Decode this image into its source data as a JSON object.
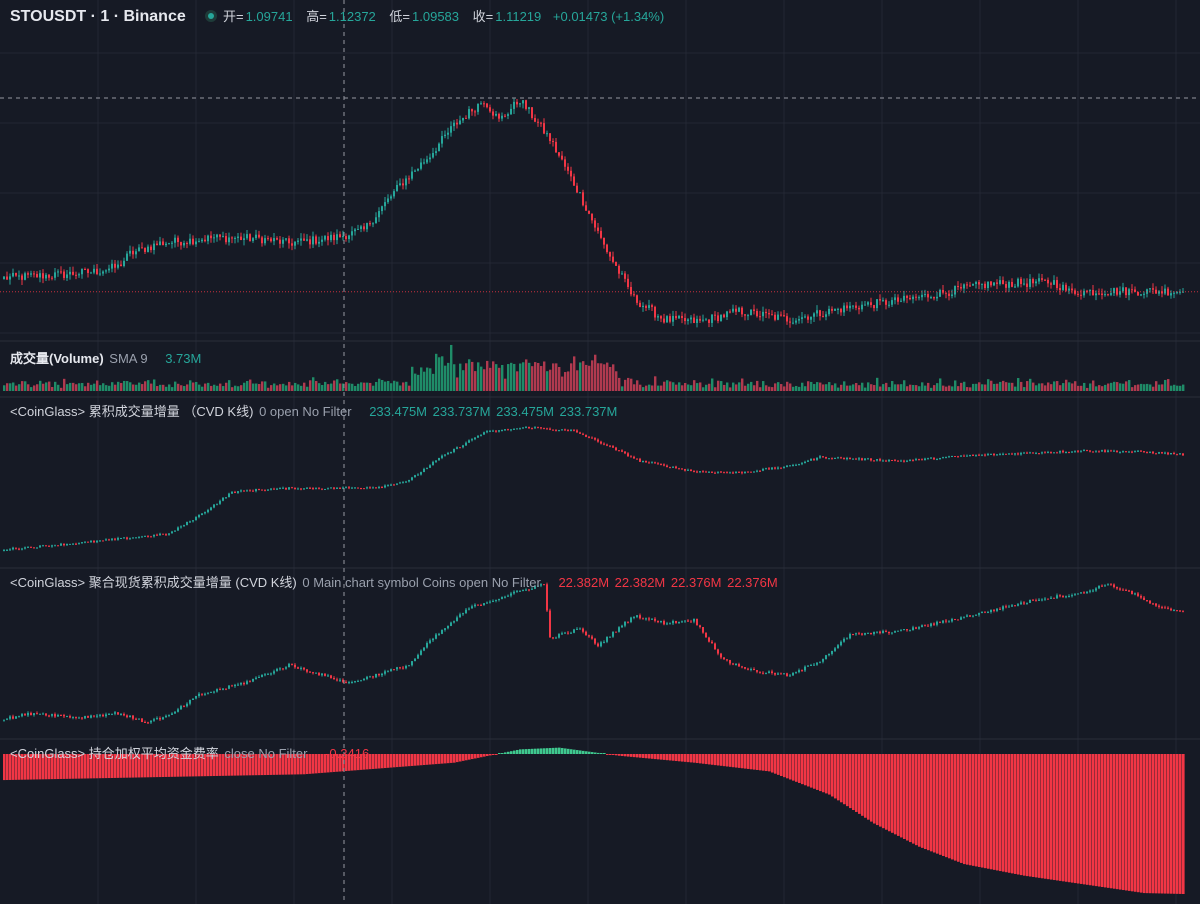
{
  "header": {
    "symbol_title": "STOUSDT · 1 · Binance",
    "open_label": "开=",
    "open_value": "1.09741",
    "high_label": "高=",
    "high_value": "1.12372",
    "low_label": "低=",
    "low_value": "1.09583",
    "close_label": "收=",
    "close_value": "1.11219",
    "change": "+0.01473 (+1.34%)"
  },
  "volume_legend": {
    "title": "成交量(Volume)",
    "sma": "SMA 9",
    "value": "3.73M"
  },
  "cvd_legend": {
    "title": "<CoinGlass> 累积成交量增量 （CVD K线)",
    "params": "0 open No Filter",
    "values": [
      "233.475M",
      "233.737M",
      "233.475M",
      "233.737M"
    ]
  },
  "spot_cvd_legend": {
    "title": "<CoinGlass> 聚合现货累积成交量增量 (CVD K线)",
    "params": "0 Main chart symbol Coins open No Filter",
    "values": [
      "22.382M",
      "22.382M",
      "22.376M",
      "22.376M"
    ]
  },
  "funding_legend": {
    "title": "<CoinGlass> 持仓加权平均资金费率",
    "params": "close No Filter",
    "value": "-0.2416"
  },
  "colors": {
    "background": "#161a25",
    "grid": "#232734",
    "up": "#26a69a",
    "down": "#f23645",
    "up_volume": "#1f8c68",
    "down_volume": "#b03a4f",
    "crosshair": "#9598a1"
  },
  "chart_data": [
    {
      "type": "candlestick",
      "name": "STOUSDT price",
      "pane": "price",
      "ylim": [
        1.08,
        1.125
      ],
      "close_anchors": [
        [
          0,
          1.0878
        ],
        [
          20,
          1.0883
        ],
        [
          30,
          1.0887
        ],
        [
          38,
          1.0894
        ],
        [
          42,
          1.0913
        ],
        [
          52,
          1.0928
        ],
        [
          70,
          1.0936
        ],
        [
          85,
          1.0935
        ],
        [
          95,
          1.0928
        ],
        [
          110,
          1.0936
        ],
        [
          120,
          1.0947
        ],
        [
          132,
          1.1012
        ],
        [
          142,
          1.1055
        ],
        [
          150,
          1.1098
        ],
        [
          160,
          1.1135
        ],
        [
          165,
          1.1105
        ],
        [
          172,
          1.1135
        ],
        [
          182,
          1.1078
        ],
        [
          192,
          1.0998
        ],
        [
          200,
          1.0925
        ],
        [
          210,
          1.0848
        ],
        [
          220,
          1.0818
        ],
        [
          232,
          1.0815
        ],
        [
          245,
          1.083
        ],
        [
          262,
          1.0818
        ],
        [
          282,
          1.0836
        ],
        [
          300,
          1.0846
        ],
        [
          312,
          1.0856
        ],
        [
          328,
          1.0869
        ],
        [
          350,
          1.0872
        ],
        [
          355,
          1.0858
        ],
        [
          372,
          1.0859
        ],
        [
          393,
          1.0859
        ]
      ]
    },
    {
      "type": "bar",
      "name": "成交量(Volume)",
      "pane": "volume",
      "ylim": [
        0,
        22
      ]
    },
    {
      "type": "candlestick",
      "name": "<CoinGlass> 累积成交量增量 （CVD K线)",
      "pane": "cvd",
      "close_anchors": [
        [
          0,
          0.02
        ],
        [
          15,
          0.05
        ],
        [
          30,
          0.08
        ],
        [
          38,
          0.1
        ],
        [
          55,
          0.14
        ],
        [
          65,
          0.28
        ],
        [
          76,
          0.46
        ],
        [
          85,
          0.48
        ],
        [
          95,
          0.49
        ],
        [
          110,
          0.49
        ],
        [
          125,
          0.5
        ],
        [
          135,
          0.55
        ],
        [
          145,
          0.72
        ],
        [
          160,
          0.92
        ],
        [
          175,
          0.96
        ],
        [
          190,
          0.93
        ],
        [
          200,
          0.83
        ],
        [
          212,
          0.7
        ],
        [
          230,
          0.62
        ],
        [
          245,
          0.61
        ],
        [
          262,
          0.66
        ],
        [
          272,
          0.73
        ],
        [
          280,
          0.72
        ],
        [
          300,
          0.7
        ],
        [
          320,
          0.74
        ],
        [
          340,
          0.76
        ],
        [
          360,
          0.78
        ],
        [
          380,
          0.77
        ],
        [
          393,
          0.75
        ]
      ]
    },
    {
      "type": "candlestick",
      "name": "<CoinGlass> 聚合现货累积成交量增量 (CVD K线)",
      "pane": "spot_cvd",
      "close_anchors": [
        [
          0,
          0.06
        ],
        [
          10,
          0.1
        ],
        [
          25,
          0.07
        ],
        [
          38,
          0.1
        ],
        [
          47,
          0.04
        ],
        [
          55,
          0.08
        ],
        [
          65,
          0.22
        ],
        [
          80,
          0.3
        ],
        [
          95,
          0.42
        ],
        [
          105,
          0.36
        ],
        [
          115,
          0.3
        ],
        [
          125,
          0.36
        ],
        [
          135,
          0.42
        ],
        [
          142,
          0.58
        ],
        [
          155,
          0.8
        ],
        [
          170,
          0.9
        ],
        [
          180,
          0.96
        ],
        [
          182,
          0.6
        ],
        [
          192,
          0.66
        ],
        [
          198,
          0.55
        ],
        [
          210,
          0.75
        ],
        [
          220,
          0.7
        ],
        [
          230,
          0.72
        ],
        [
          240,
          0.45
        ],
        [
          250,
          0.38
        ],
        [
          262,
          0.35
        ],
        [
          272,
          0.45
        ],
        [
          282,
          0.62
        ],
        [
          300,
          0.65
        ],
        [
          320,
          0.74
        ],
        [
          345,
          0.86
        ],
        [
          360,
          0.9
        ],
        [
          367,
          0.96
        ],
        [
          375,
          0.91
        ],
        [
          385,
          0.8
        ],
        [
          393,
          0.78
        ]
      ]
    },
    {
      "type": "bar",
      "name": "<CoinGlass> 持仓加权平均资金费率",
      "pane": "funding",
      "ylim": [
        -0.25,
        0.02
      ],
      "last_value": -0.2416
    }
  ]
}
